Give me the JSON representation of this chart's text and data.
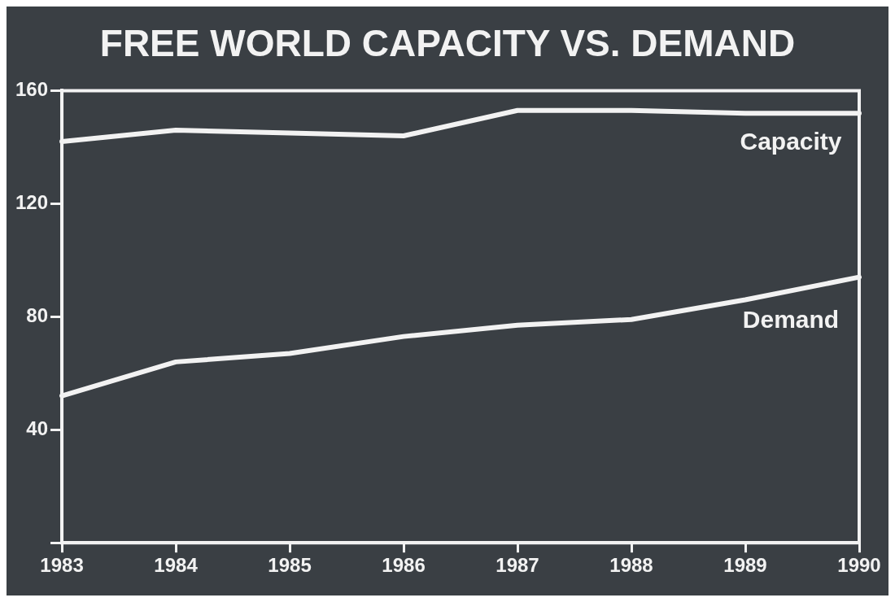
{
  "chart_data": {
    "type": "line",
    "title": "FREE WORLD CAPACITY VS. DEMAND",
    "categories": [
      "1983",
      "1984",
      "1985",
      "1986",
      "1987",
      "1988",
      "1989",
      "1990"
    ],
    "series": [
      {
        "name": "Capacity",
        "color": "#f2f2f2",
        "values": [
          142,
          146,
          145,
          144,
          153,
          153,
          152,
          152
        ]
      },
      {
        "name": "Demand",
        "color": "#f2f2f2",
        "values": [
          52,
          64,
          67,
          73,
          77,
          79,
          86,
          94
        ]
      }
    ],
    "ylim": [
      0,
      160
    ],
    "yticks": [
      {
        "value": 0,
        "label": null
      },
      40,
      80,
      120,
      160
    ],
    "grid": false,
    "legend": false,
    "marker": "none",
    "line_style": "solid"
  }
}
